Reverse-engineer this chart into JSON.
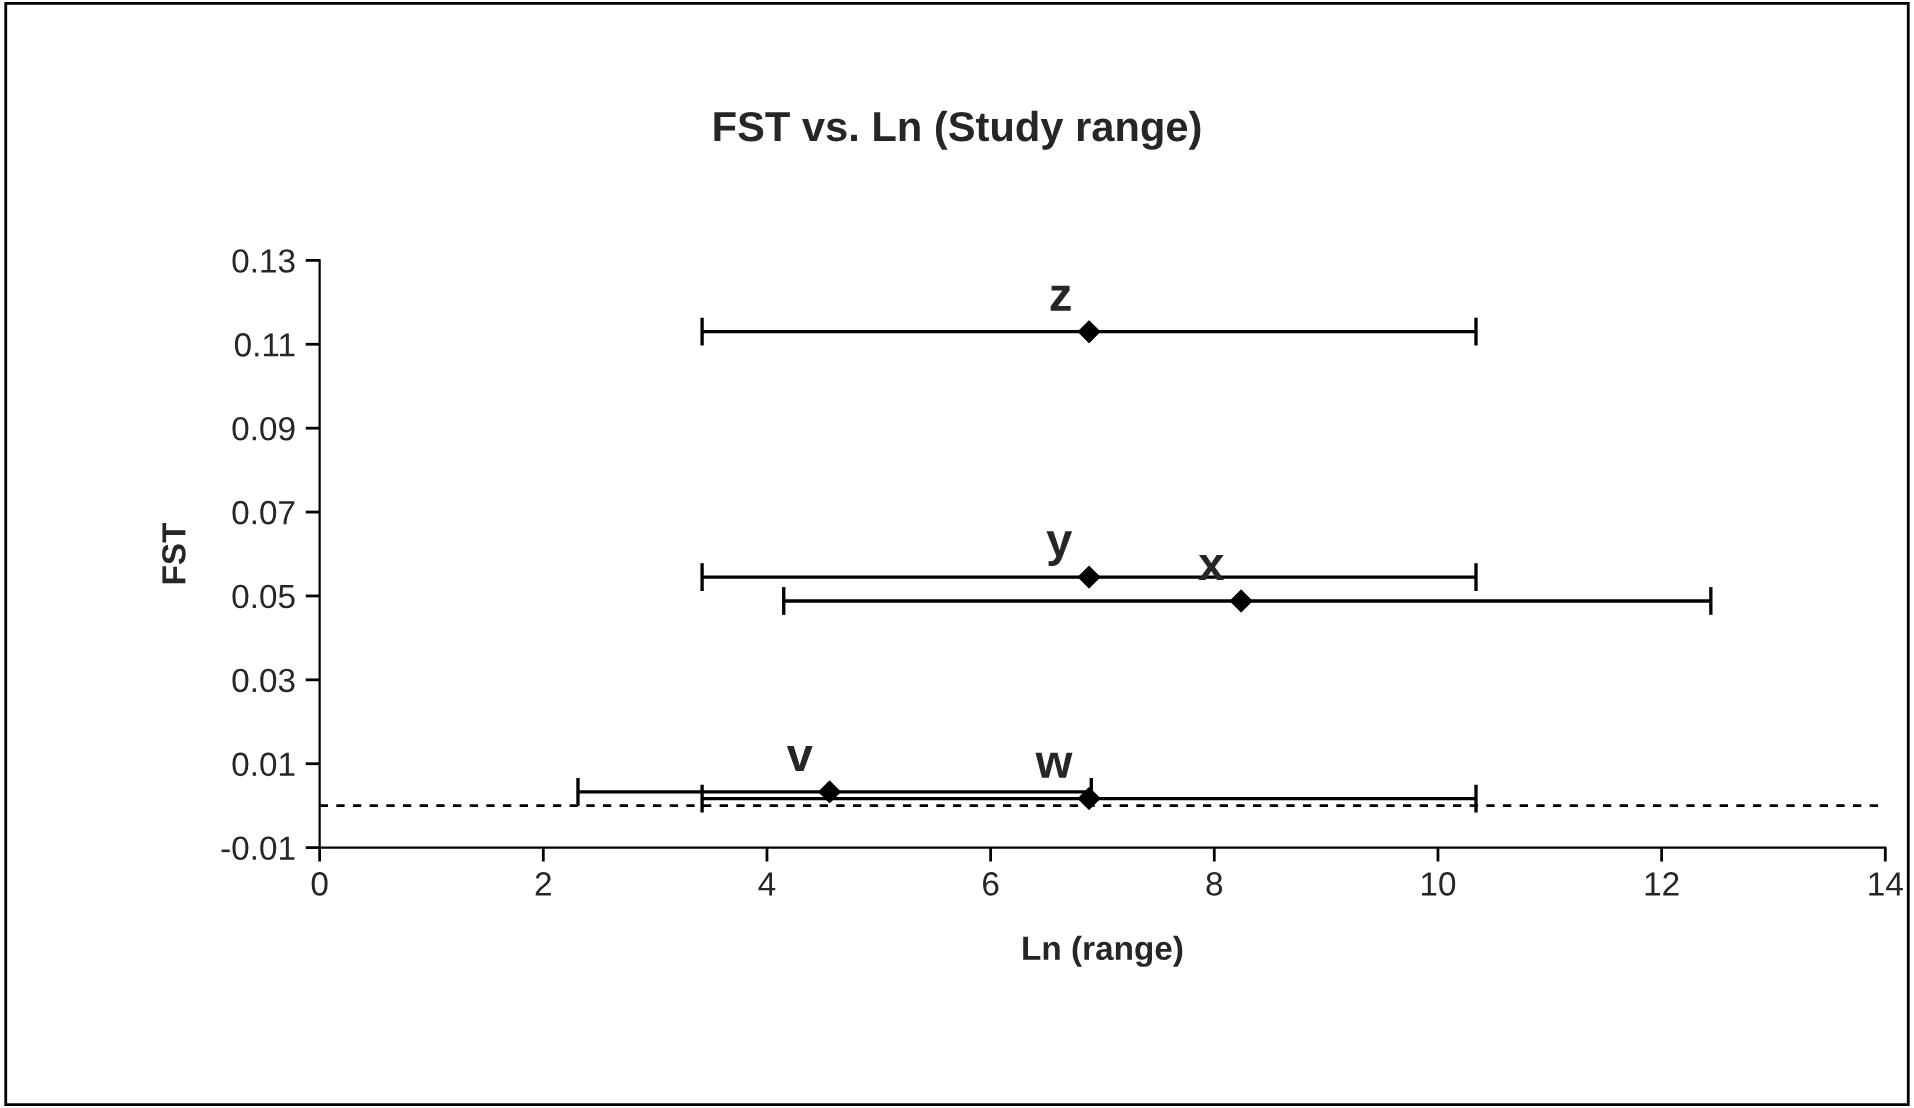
{
  "chart_data": {
    "type": "scatter",
    "title": "FST vs. Ln (Study range)",
    "xlabel": "Ln (range)",
    "ylabel": "FST",
    "x": [
      6.88,
      6.88,
      8.24,
      4.56,
      6.88
    ],
    "series": [
      {
        "color": "#000000",
        "values": [
          0.113,
          0.0545,
          0.0488,
          0.0033,
          0.0017
        ],
        "xerrors": [
          [
            3.42,
            10.34
          ],
          [
            3.42,
            10.34
          ],
          [
            4.15,
            12.44
          ],
          [
            2.31,
            6.9
          ],
          [
            3.42,
            10.34
          ]
        ]
      }
    ],
    "annotations": [
      {
        "text": "z",
        "x": 6.88,
        "y": 0.113
      },
      {
        "text": "y",
        "x": 6.88,
        "y": 0.0545
      },
      {
        "text": "x",
        "x": 8.24,
        "y": 0.0488
      },
      {
        "text": "v",
        "x": 4.56,
        "y": 0.0033
      },
      {
        "text": "w",
        "x": 6.88,
        "y": 0.0017
      }
    ],
    "ref_lines": [
      {
        "axis": "y",
        "value": 0,
        "color": "#000000",
        "line_style": "dashed"
      }
    ],
    "xlim": [
      0,
      14
    ],
    "xticks": [
      0,
      2,
      4,
      6,
      8,
      10,
      12,
      14
    ],
    "ylim": [
      -0.01,
      0.13
    ],
    "yticks": [
      -0.01,
      0.01,
      0.03,
      0.05,
      0.07,
      0.09,
      0.11,
      0.13
    ],
    "grid": false,
    "legend": false,
    "marker": "diamond"
  }
}
